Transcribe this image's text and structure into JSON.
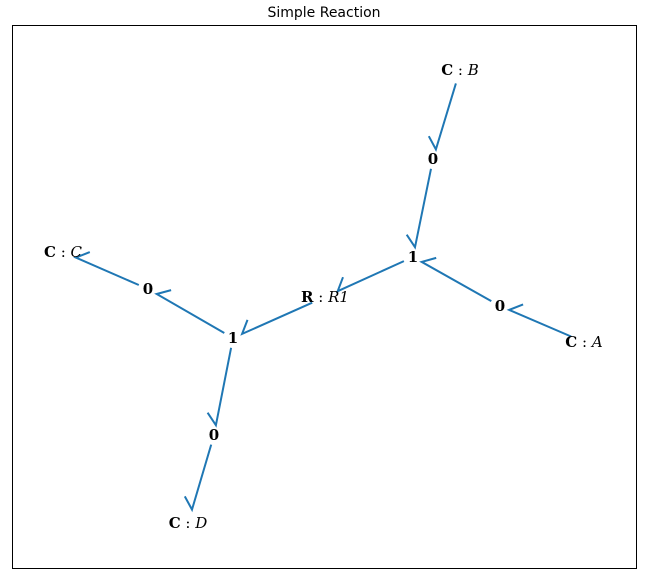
{
  "title": "Simple Reaction",
  "colors": {
    "bond": "#1f77b4",
    "text": "#000000",
    "frame": "#000000"
  },
  "nodes": [
    {
      "id": "CB",
      "kind": "C",
      "sep": " : ",
      "name": "B"
    },
    {
      "id": "Z1",
      "kind": "0",
      "sep": "",
      "name": ""
    },
    {
      "id": "O2",
      "kind": "1",
      "sep": "",
      "name": ""
    },
    {
      "id": "Z2",
      "kind": "0",
      "sep": "",
      "name": ""
    },
    {
      "id": "CA",
      "kind": "C",
      "sep": " : ",
      "name": "A"
    },
    {
      "id": "R1",
      "kind": "R",
      "sep": " : ",
      "name": "R1"
    },
    {
      "id": "O1",
      "kind": "1",
      "sep": "",
      "name": ""
    },
    {
      "id": "Z3",
      "kind": "0",
      "sep": "",
      "name": ""
    },
    {
      "id": "CC",
      "kind": "C",
      "sep": " : ",
      "name": "C"
    },
    {
      "id": "Z4",
      "kind": "0",
      "sep": "",
      "name": ""
    },
    {
      "id": "CD",
      "kind": "C",
      "sep": " : ",
      "name": "D"
    }
  ],
  "bonds": [
    {
      "from": "CB",
      "to": "Z1"
    },
    {
      "from": "Z1",
      "to": "O2"
    },
    {
      "from": "CA",
      "to": "Z2"
    },
    {
      "from": "Z2",
      "to": "O2"
    },
    {
      "from": "O2",
      "to": "R1"
    },
    {
      "from": "R1",
      "to": "O1"
    },
    {
      "from": "O1",
      "to": "Z3"
    },
    {
      "from": "Z3",
      "to": "CC"
    },
    {
      "from": "O1",
      "to": "Z4"
    },
    {
      "from": "Z4",
      "to": "CD"
    }
  ]
}
